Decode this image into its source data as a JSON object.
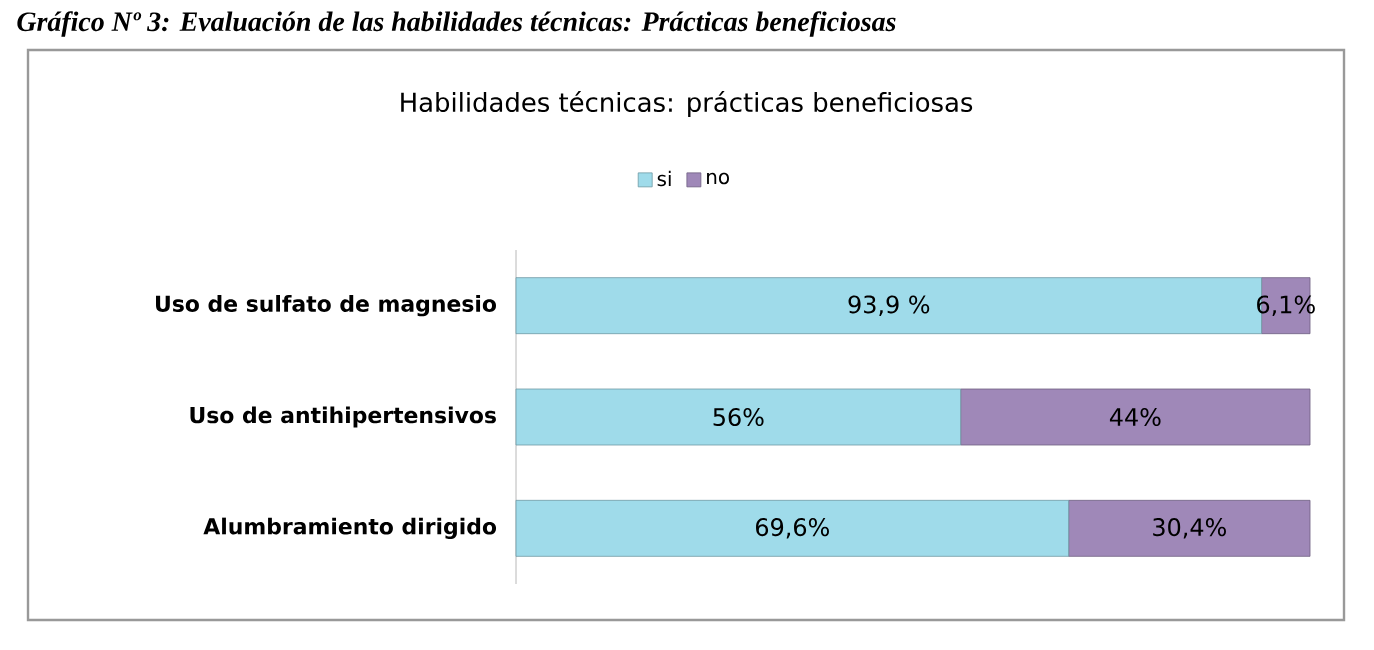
{
  "chart_data": {
    "type": "bar",
    "orientation": "horizontal",
    "stacked": true,
    "title": "Habilidades técnicas: prácticas beneficiosas",
    "annotations": [
      "*Gráfico Nº 3: Evaluación de las habilidades técnicas: Prácticas beneficiosas*"
    ],
    "categories": [
      "Uso de sulfato de magnesio",
      "Uso de antihipertensivos",
      "Alumbramiento dirigido"
    ],
    "series": [
      {
        "name": "si",
        "color": "#9fdbea",
        "values": [
          93.9,
          56,
          69.6
        ],
        "value_labels": [
          "93,9 %",
          "56%",
          "69,6%"
        ]
      },
      {
        "name": "no",
        "color": "#9f88b8",
        "values": [
          6.1,
          44,
          30.4
        ],
        "value_labels": [
          "6,1%",
          "44%",
          "30,4%"
        ]
      }
    ],
    "legend": "top"
  }
}
